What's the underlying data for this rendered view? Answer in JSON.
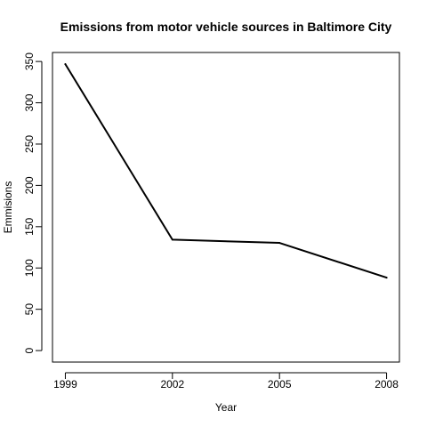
{
  "chart_data": {
    "type": "line",
    "title": "Emissions from motor vehicle sources in Baltimore City",
    "xlabel": "Year",
    "ylabel": "Emmisions",
    "x": [
      1999,
      2002,
      2005,
      2008
    ],
    "x_tick_labels": [
      "1999",
      "2002",
      "2005",
      "2008"
    ],
    "y_ticks": [
      0,
      50,
      100,
      150,
      200,
      250,
      300,
      350
    ],
    "y_tick_labels": [
      "0",
      "50",
      "100",
      "150",
      "200",
      "250",
      "300",
      "350"
    ],
    "ylim": [
      -13.9,
      360.9
    ],
    "xlim": [
      1998.64,
      2008.36
    ],
    "series": [
      {
        "values": [
          346.8,
          134.3,
          130.4,
          88.3
        ],
        "color": "#000000"
      }
    ],
    "grid": false,
    "legend": "none"
  }
}
